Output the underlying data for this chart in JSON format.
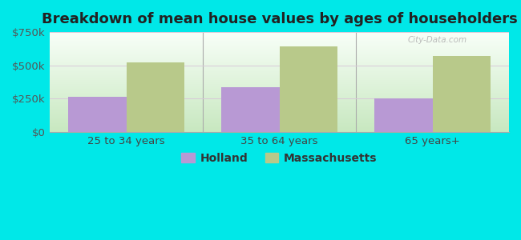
{
  "title": "Breakdown of mean house values by ages of householders",
  "categories": [
    "25 to 34 years",
    "35 to 64 years",
    "65 years+"
  ],
  "holland_values": [
    265000,
    335000,
    252000
  ],
  "mass_values": [
    520000,
    645000,
    570000
  ],
  "ylim": [
    0,
    750000
  ],
  "yticks": [
    0,
    250000,
    500000,
    750000
  ],
  "ytick_labels": [
    "$0",
    "$250k",
    "$500k",
    "$750k"
  ],
  "holland_color": "#b899d4",
  "mass_color": "#b8c98a",
  "outer_bg_color": "#00e8e8",
  "plot_bg_color": "#e0f0e0",
  "bar_width": 0.38,
  "legend_labels": [
    "Holland",
    "Massachusetts"
  ],
  "title_fontsize": 13,
  "tick_fontsize": 9.5,
  "legend_fontsize": 10,
  "watermark": "City-Data.com"
}
